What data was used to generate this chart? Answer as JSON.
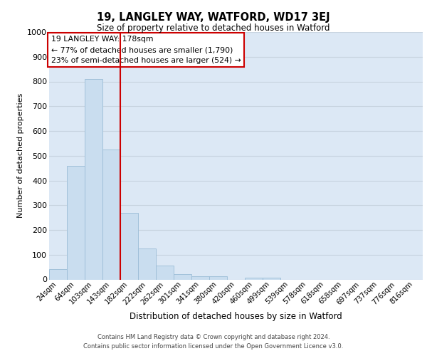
{
  "title": "19, LANGLEY WAY, WATFORD, WD17 3EJ",
  "subtitle": "Size of property relative to detached houses in Watford",
  "xlabel": "Distribution of detached houses by size in Watford",
  "ylabel": "Number of detached properties",
  "bin_labels": [
    "24sqm",
    "64sqm",
    "103sqm",
    "143sqm",
    "182sqm",
    "222sqm",
    "262sqm",
    "301sqm",
    "341sqm",
    "380sqm",
    "420sqm",
    "460sqm",
    "499sqm",
    "539sqm",
    "578sqm",
    "618sqm",
    "658sqm",
    "697sqm",
    "737sqm",
    "776sqm",
    "816sqm"
  ],
  "bar_values": [
    43,
    460,
    810,
    525,
    270,
    125,
    57,
    23,
    12,
    12,
    0,
    8,
    8,
    0,
    0,
    0,
    0,
    0,
    0,
    0,
    0
  ],
  "bar_color": "#c9ddef",
  "bar_edge_color": "#9bbcd6",
  "vline_color": "#cc0000",
  "annotation_title": "19 LANGLEY WAY: 178sqm",
  "annotation_line1": "← 77% of detached houses are smaller (1,790)",
  "annotation_line2": "23% of semi-detached houses are larger (524) →",
  "annotation_box_color": "#ffffff",
  "annotation_box_edge": "#cc0000",
  "grid_color": "#c8d4e0",
  "bg_color": "#dce8f5",
  "ylim": [
    0,
    1000
  ],
  "footer_line1": "Contains HM Land Registry data © Crown copyright and database right 2024.",
  "footer_line2": "Contains public sector information licensed under the Open Government Licence v3.0."
}
